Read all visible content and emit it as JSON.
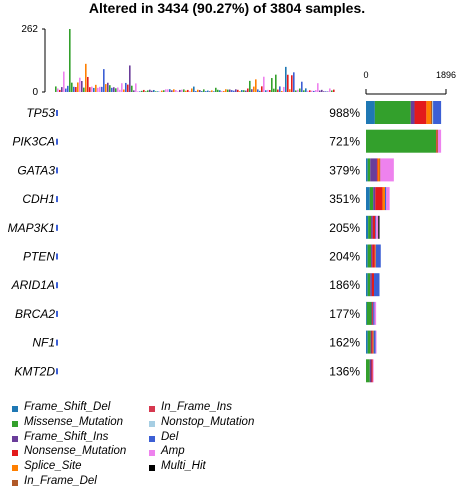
{
  "chart_data": {
    "type": "oncoplot",
    "title": "Altered in 3434 (90.27%) of 3804 samples.",
    "tmb_axis": {
      "ticks": [
        "262",
        "0"
      ],
      "max": 262
    },
    "count_axis": {
      "ticks": [
        "0",
        "1896"
      ],
      "max": 1896
    },
    "categories": [
      "Frame_Shift_Del",
      "Missense_Mutation",
      "Frame_Shift_Ins",
      "Nonsense_Mutation",
      "Splice_Site",
      "In_Frame_Del",
      "In_Frame_Ins",
      "Nonstop_Mutation",
      "Del",
      "Amp",
      "Multi_Hit"
    ],
    "colors": {
      "Frame_Shift_Del": "#1f78b4",
      "Missense_Mutation": "#33a02c",
      "Frame_Shift_Ins": "#6a3d9a",
      "Nonsense_Mutation": "#e31a1c",
      "Splice_Site": "#ff7f00",
      "In_Frame_Del": "#b15928",
      "In_Frame_Ins": "#d6384f",
      "Nonstop_Mutation": "#a6cee3",
      "Del": "#3c5fd4",
      "Amp": "#ee82ee",
      "Multi_Hit": "#000000"
    },
    "genes": [
      {
        "name": "TP53",
        "pct": "988%",
        "counts": {
          "Frame_Shift_Del": 210,
          "Missense_Mutation": 850,
          "Frame_Shift_Ins": 90,
          "Nonsense_Mutation": 280,
          "Splice_Site": 110,
          "In_Frame_Del": 30,
          "Nonstop_Mutation": 20,
          "Del": 190
        }
      },
      {
        "name": "PIK3CA",
        "pct": "721%",
        "counts": {
          "Missense_Mutation": 1660,
          "Nonsense_Mutation": 15,
          "In_Frame_Del": 30,
          "Amp": 75
        }
      },
      {
        "name": "GATA3",
        "pct": "379%",
        "counts": {
          "Frame_Shift_Del": 40,
          "Missense_Mutation": 60,
          "Frame_Shift_Ins": 160,
          "Nonsense_Mutation": 20,
          "Splice_Site": 40,
          "In_Frame_Del": 20,
          "Amp": 320
        }
      },
      {
        "name": "CDH1",
        "pct": "351%",
        "counts": {
          "Frame_Shift_Del": 90,
          "Missense_Mutation": 80,
          "Frame_Shift_Ins": 50,
          "Nonsense_Mutation": 170,
          "Splice_Site": 60,
          "Amp": 80,
          "Del": 30
        }
      },
      {
        "name": "MAP3K1",
        "pct": "205%",
        "counts": {
          "Frame_Shift_Del": 50,
          "Missense_Mutation": 70,
          "Frame_Shift_Ins": 40,
          "Nonsense_Mutation": 60,
          "Amp": 50,
          "Del": 20,
          "Multi_Hit": 30
        }
      },
      {
        "name": "PTEN",
        "pct": "204%",
        "counts": {
          "Frame_Shift_Del": 40,
          "Missense_Mutation": 80,
          "Frame_Shift_Ins": 30,
          "Nonsense_Mutation": 60,
          "Splice_Site": 20,
          "Del": 120
        }
      },
      {
        "name": "ARID1A",
        "pct": "186%",
        "counts": {
          "Frame_Shift_Del": 40,
          "Missense_Mutation": 60,
          "Frame_Shift_Ins": 40,
          "Nonsense_Mutation": 50,
          "Del": 130
        }
      },
      {
        "name": "BRCA2",
        "pct": "177%",
        "counts": {
          "Frame_Shift_Del": 20,
          "Missense_Mutation": 110,
          "Frame_Shift_Ins": 20,
          "Nonsense_Mutation": 20,
          "Amp": 40,
          "Del": 30
        }
      },
      {
        "name": "NF1",
        "pct": "162%",
        "counts": {
          "Frame_Shift_Del": 40,
          "Missense_Mutation": 70,
          "Frame_Shift_Ins": 20,
          "Nonsense_Mutation": 30,
          "Splice_Site": 20,
          "Amp": 20,
          "Del": 50
        }
      },
      {
        "name": "KMT2D",
        "pct": "136%",
        "counts": {
          "Missense_Mutation": 90,
          "Frame_Shift_Ins": 40,
          "Nonsense_Mutation": 30,
          "Amp": 20
        }
      }
    ]
  },
  "legend": {
    "col1": [
      "Frame_Shift_Del",
      "Missense_Mutation",
      "Frame_Shift_Ins",
      "Nonsense_Mutation",
      "Splice_Site",
      "In_Frame_Del"
    ],
    "col2": [
      "In_Frame_Ins",
      "Nonstop_Mutation",
      "Del",
      "Amp",
      "Multi_Hit"
    ]
  }
}
